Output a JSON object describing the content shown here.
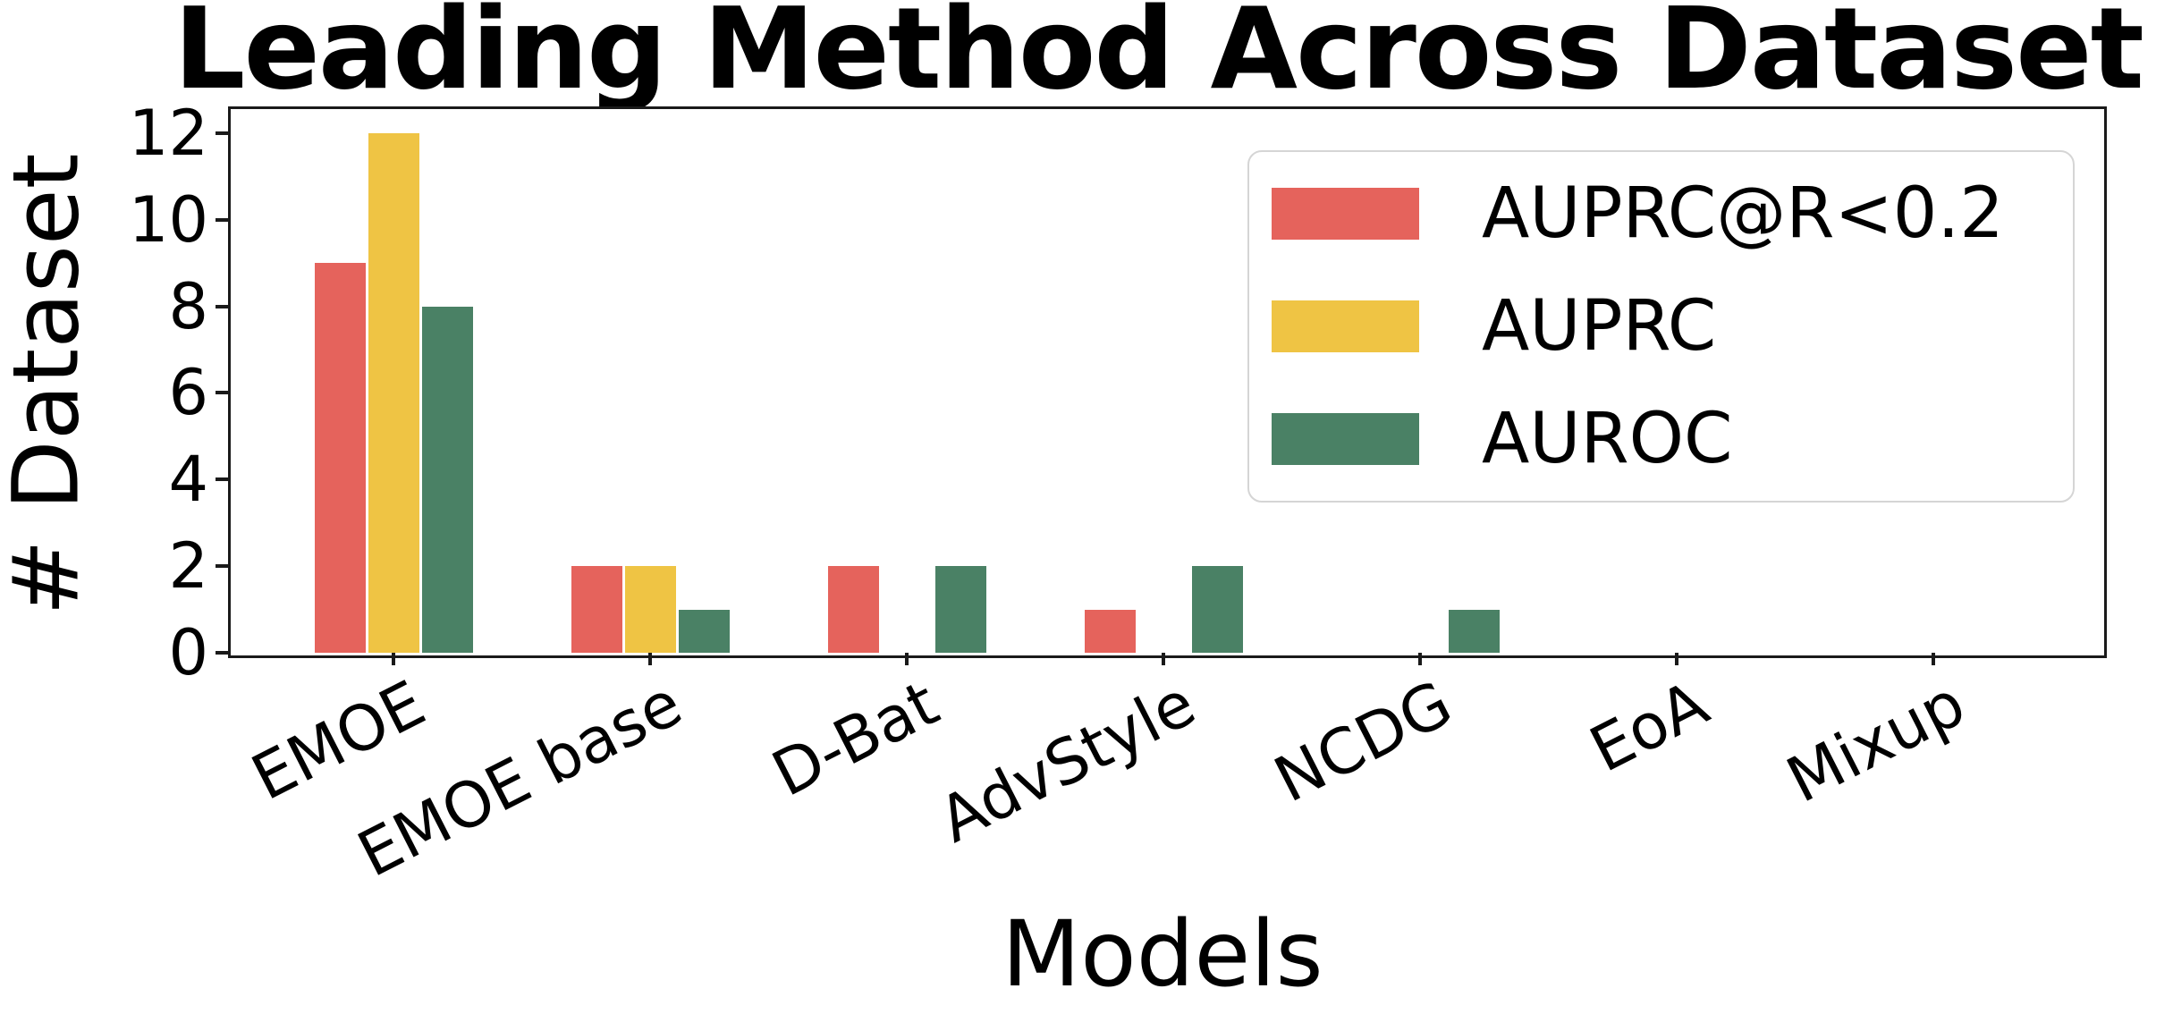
{
  "title": "Leading Method Across Dataset",
  "axes": {
    "ylabel": "# Dataset",
    "xlabel": "Models"
  },
  "colors": {
    "auprc_at_r": "#E5635C",
    "auprc": "#EFC444",
    "auroc": "#4A8165",
    "spine": "#1a1a1a",
    "text": "#000000",
    "legend_border": "#d5d5d5"
  },
  "legend": {
    "position": "upper right",
    "items": [
      {
        "label": "AUPRC@R<0.2",
        "color": "#E5635C"
      },
      {
        "label": "AUPRC",
        "color": "#EFC444"
      },
      {
        "label": "AUROC",
        "color": "#4A8165"
      }
    ]
  },
  "chart_data": {
    "type": "bar",
    "title": "Leading Method Across Dataset",
    "xlabel": "Models",
    "ylabel": "# Dataset",
    "categories": [
      "EMOE",
      "EMOE base",
      "D-Bat",
      "AdvStyle",
      "NCDG",
      "EoA",
      "Mixup"
    ],
    "series": [
      {
        "name": "AUPRC@R<0.2",
        "color": "#E5635C",
        "values": [
          9,
          2,
          2,
          1,
          0,
          0,
          0
        ]
      },
      {
        "name": "AUPRC",
        "color": "#EFC444",
        "values": [
          12,
          2,
          0,
          0,
          0,
          0,
          0
        ]
      },
      {
        "name": "AUROC",
        "color": "#4A8165",
        "values": [
          8,
          1,
          2,
          2,
          1,
          0,
          0
        ]
      }
    ],
    "yticks": [
      0,
      2,
      4,
      6,
      8,
      10,
      12
    ],
    "ylim": [
      0,
      12.6
    ],
    "grid": false,
    "xtick_rotation": 27,
    "legend_position": "upper right"
  }
}
